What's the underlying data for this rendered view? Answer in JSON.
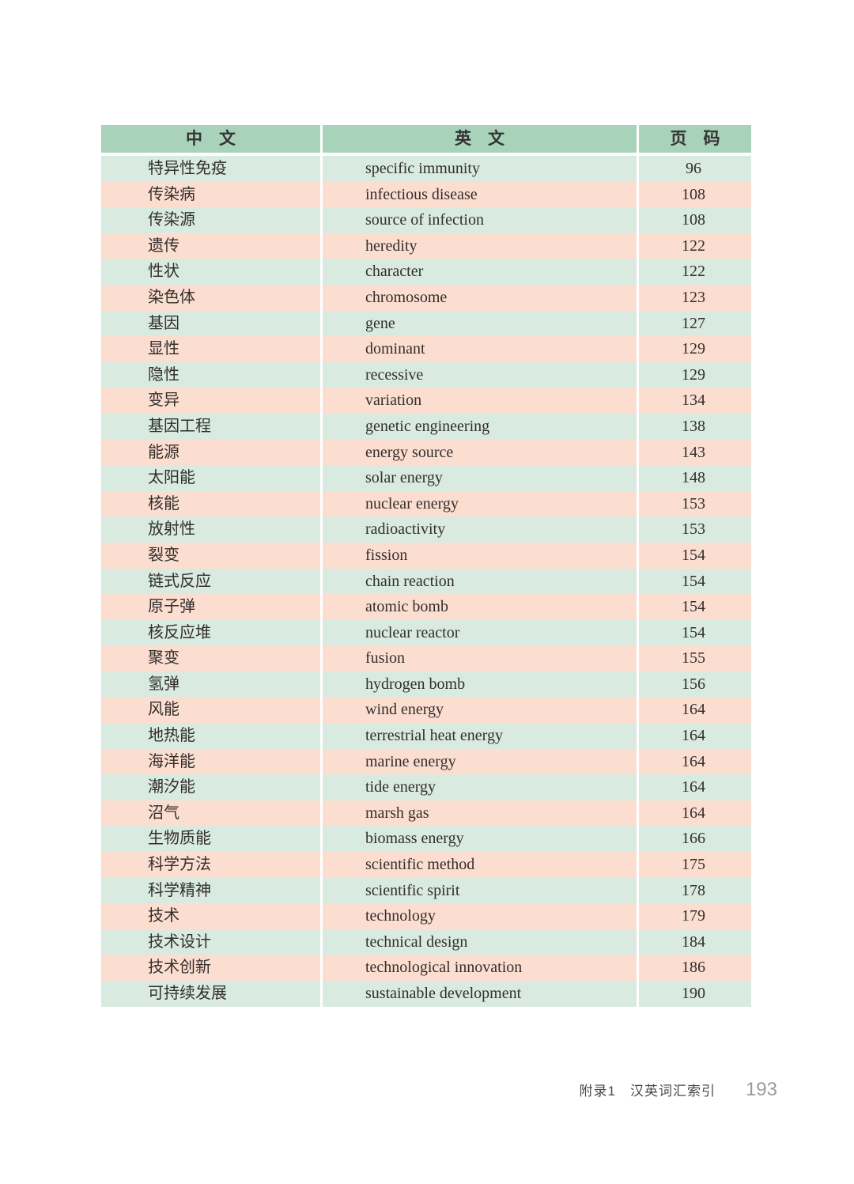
{
  "table": {
    "headers": [
      "中　文",
      "英　文",
      "页　码"
    ],
    "rows": [
      {
        "cn": "特异性免疫",
        "en": "specific immunity",
        "page": "96"
      },
      {
        "cn": "传染病",
        "en": "infectious disease",
        "page": "108"
      },
      {
        "cn": "传染源",
        "en": "source of infection",
        "page": "108"
      },
      {
        "cn": "遗传",
        "en": "heredity",
        "page": "122"
      },
      {
        "cn": "性状",
        "en": "character",
        "page": "122"
      },
      {
        "cn": "染色体",
        "en": "chromosome",
        "page": "123"
      },
      {
        "cn": "基因",
        "en": "gene",
        "page": "127"
      },
      {
        "cn": "显性",
        "en": "dominant",
        "page": "129"
      },
      {
        "cn": "隐性",
        "en": "recessive",
        "page": "129"
      },
      {
        "cn": "变异",
        "en": "variation",
        "page": "134"
      },
      {
        "cn": "基因工程",
        "en": "genetic engineering",
        "page": "138"
      },
      {
        "cn": "能源",
        "en": "energy source",
        "page": "143"
      },
      {
        "cn": "太阳能",
        "en": "solar energy",
        "page": "148"
      },
      {
        "cn": "核能",
        "en": "nuclear energy",
        "page": "153"
      },
      {
        "cn": "放射性",
        "en": "radioactivity",
        "page": "153"
      },
      {
        "cn": "裂变",
        "en": "fission",
        "page": "154"
      },
      {
        "cn": "链式反应",
        "en": "chain reaction",
        "page": "154"
      },
      {
        "cn": "原子弹",
        "en": "atomic bomb",
        "page": "154"
      },
      {
        "cn": "核反应堆",
        "en": "nuclear reactor",
        "page": "154"
      },
      {
        "cn": "聚变",
        "en": "fusion",
        "page": "155"
      },
      {
        "cn": "氢弹",
        "en": "hydrogen bomb",
        "page": "156"
      },
      {
        "cn": "风能",
        "en": "wind energy",
        "page": "164"
      },
      {
        "cn": "地热能",
        "en": "terrestrial heat energy",
        "page": "164"
      },
      {
        "cn": "海洋能",
        "en": "marine energy",
        "page": "164"
      },
      {
        "cn": "潮汐能",
        "en": "tide energy",
        "page": "164"
      },
      {
        "cn": "沼气",
        "en": "marsh gas",
        "page": "164"
      },
      {
        "cn": "生物质能",
        "en": "biomass energy",
        "page": "166"
      },
      {
        "cn": "科学方法",
        "en": "scientific method",
        "page": "175"
      },
      {
        "cn": "科学精神",
        "en": "scientific spirit",
        "page": "178"
      },
      {
        "cn": "技术",
        "en": "technology",
        "page": "179"
      },
      {
        "cn": "技术设计",
        "en": "technical design",
        "page": "184"
      },
      {
        "cn": "技术创新",
        "en": "technological innovation",
        "page": "186"
      },
      {
        "cn": "可持续发展",
        "en": "sustainable development",
        "page": "190"
      }
    ]
  },
  "footer": {
    "appendix_label": "附录1",
    "index_title": "汉英词汇索引",
    "page_number": "193"
  },
  "colors": {
    "header_bg": "#a9d2ba",
    "row_green": "#d9eae0",
    "row_pink": "#fcded0",
    "text": "#322e2c",
    "footer_text": "#4a4a4a",
    "footer_page_number": "#9b9b9b"
  }
}
